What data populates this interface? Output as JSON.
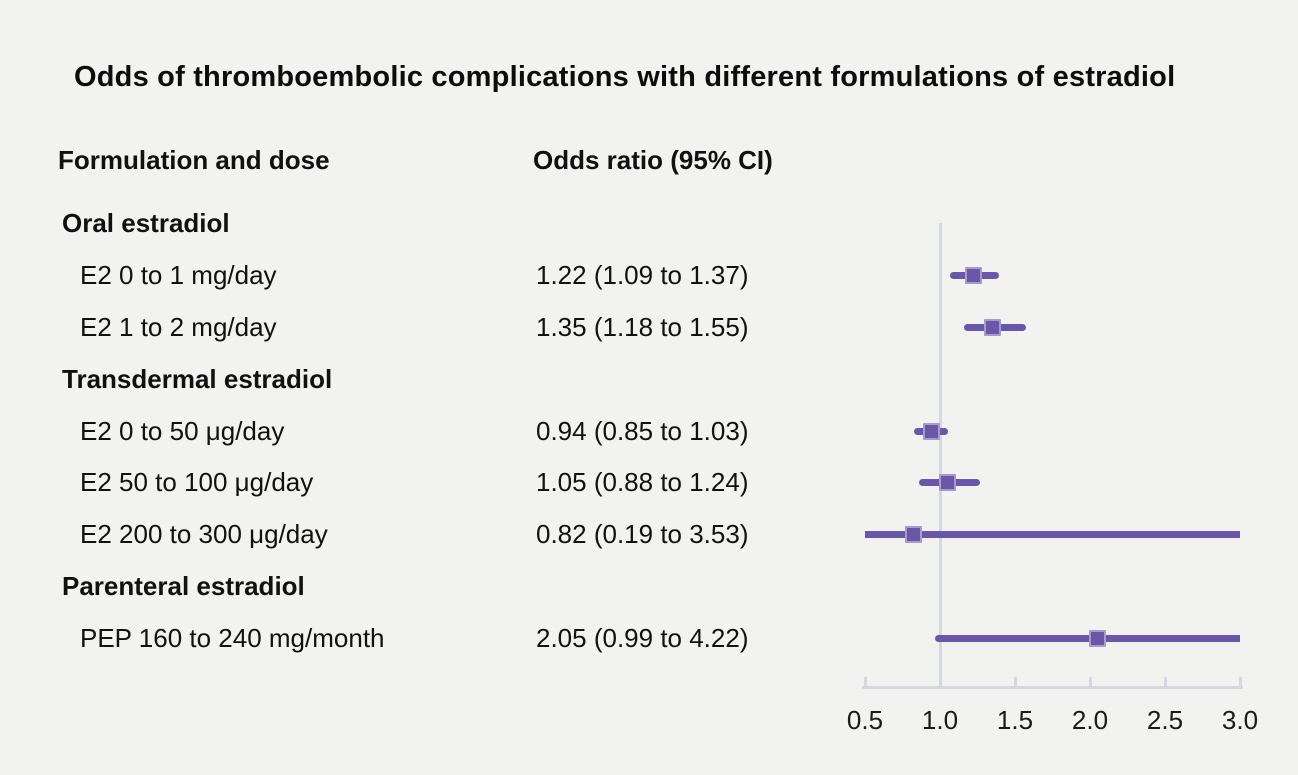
{
  "page": {
    "background_color": "#f2f2f1",
    "text_color": "#111111",
    "accent_color": "#6a57a6",
    "axis_color": "#d4d8e0"
  },
  "title": "Odds of thromboembolic complications with different formulations of estradiol",
  "columns": {
    "formulation": "Formulation and dose",
    "odds_ratio": "Odds ratio (95% CI)"
  },
  "chart_data": {
    "type": "scatter",
    "subtype": "forest-plot",
    "title": "Odds of thromboembolic complications with different formulations of estradiol",
    "xlabel": "",
    "ylabel": "",
    "xlim": [
      0.5,
      3.0
    ],
    "x_ticks": [
      "0.5",
      "1.0",
      "1.5",
      "2.0",
      "2.5",
      "3.0"
    ],
    "reference_line_x": 1.0,
    "grid": false,
    "legend": false,
    "marker_color": "#6a57a6",
    "rows": [
      {
        "kind": "group",
        "label": "Oral estradiol"
      },
      {
        "kind": "item",
        "label": "E2 0 to 1 mg/day",
        "value": "1.22 (1.09 to 1.37)",
        "or": 1.22,
        "lo": 1.09,
        "hi": 1.37
      },
      {
        "kind": "item",
        "label": "E2 1 to 2 mg/day",
        "value": "1.35 (1.18 to 1.55)",
        "or": 1.35,
        "lo": 1.18,
        "hi": 1.55
      },
      {
        "kind": "group",
        "label": "Transdermal estradiol"
      },
      {
        "kind": "item",
        "label": "E2 0 to 50 μg/day",
        "value": "0.94 (0.85 to 1.03)",
        "or": 0.94,
        "lo": 0.85,
        "hi": 1.03
      },
      {
        "kind": "item",
        "label": "E2 50 to 100 μg/day",
        "value": "1.05 (0.88 to 1.24)",
        "or": 1.05,
        "lo": 0.88,
        "hi": 1.24
      },
      {
        "kind": "item",
        "label": "E2 200 to 300 μg/day",
        "value": "0.82 (0.19 to 3.53)",
        "or": 0.82,
        "lo": 0.19,
        "hi": 3.53
      },
      {
        "kind": "group",
        "label": "Parenteral estradiol"
      },
      {
        "kind": "item",
        "label": "PEP 160 to 240 mg/month",
        "value": "2.05 (0.99 to 4.22)",
        "or": 2.05,
        "lo": 0.99,
        "hi": 4.22
      }
    ]
  }
}
